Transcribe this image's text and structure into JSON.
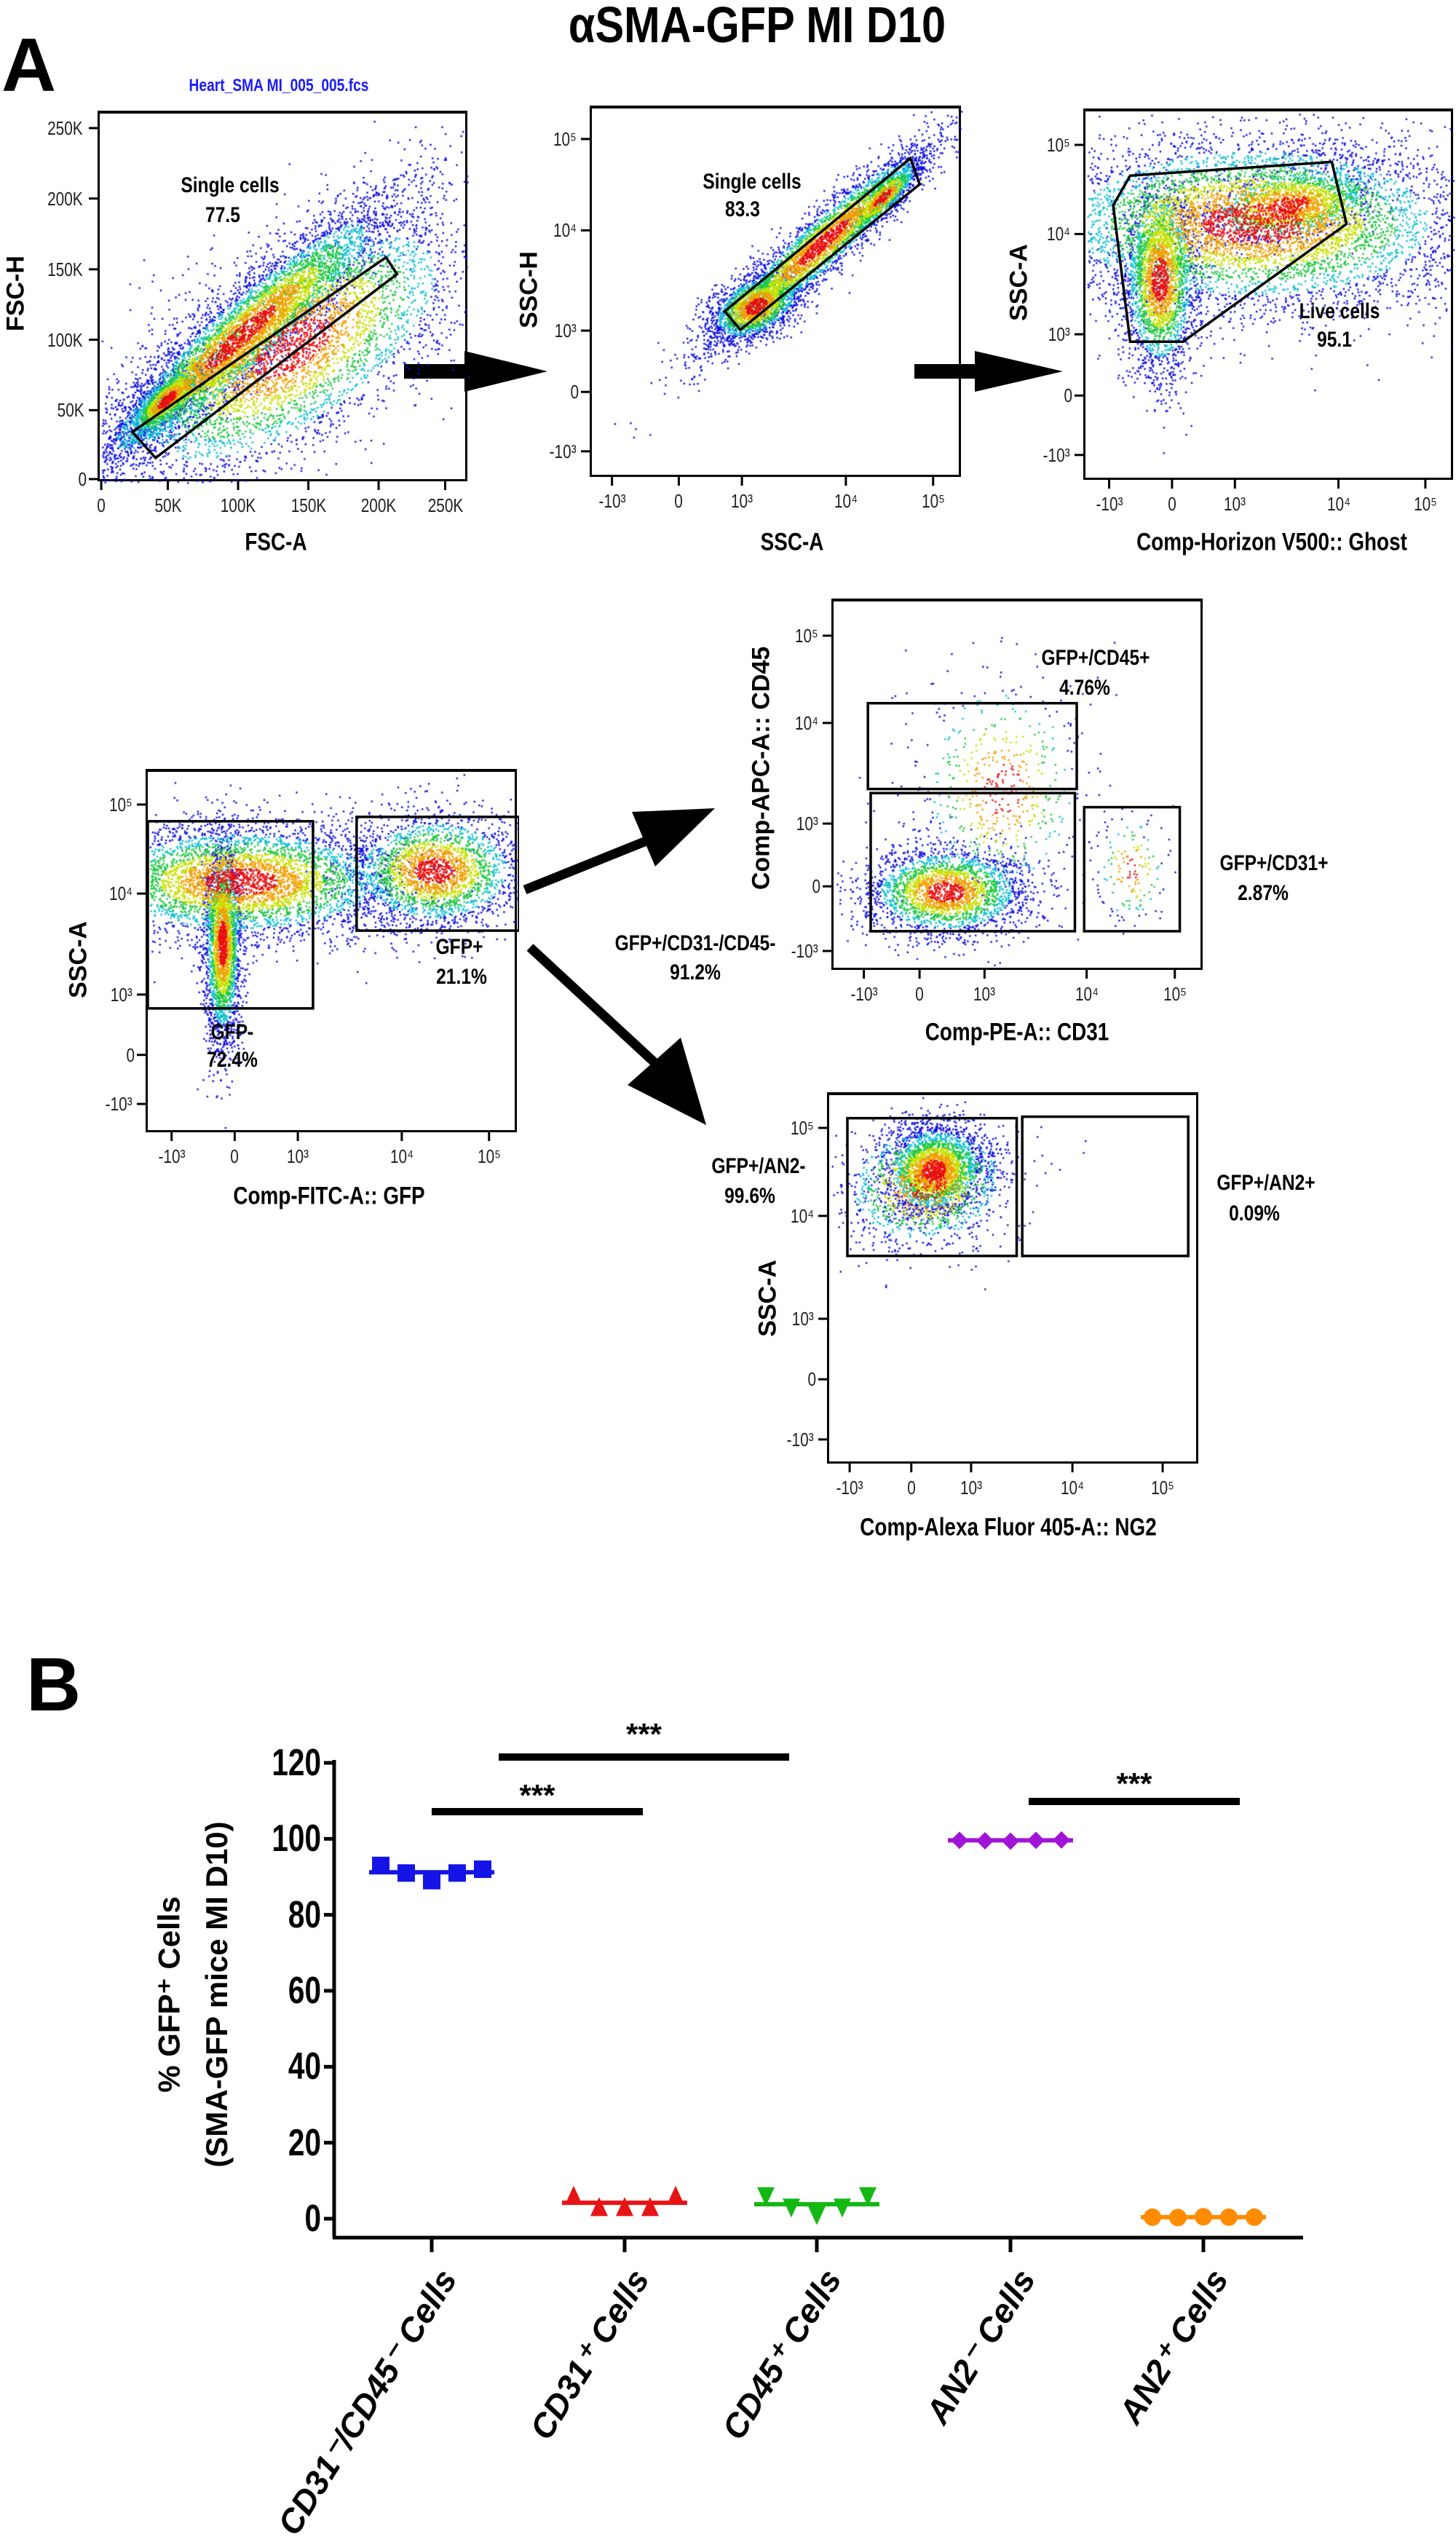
{
  "figure": {
    "title": "αSMA-GFP MI D10",
    "panel_a_label": "A",
    "panel_b_label": "B",
    "filename": "Heart_SMA MI_005_005.fcs"
  },
  "flow_plots": [
    {
      "xlabel": "FSC-A",
      "ylabel": "FSC-H",
      "xticks": [
        "0",
        "50K",
        "100K",
        "150K",
        "200K",
        "250K"
      ],
      "yticks": [
        "250K",
        "200K",
        "150K",
        "100K",
        "50K",
        "0"
      ],
      "gates": [
        {
          "name": "Single cells",
          "value": "77.5"
        }
      ]
    },
    {
      "xlabel": "SSC-A",
      "ylabel": "SSC-H",
      "xticks": [
        "-10³",
        "0",
        "10³",
        "10⁴",
        "10⁵"
      ],
      "yticks": [
        "10⁵",
        "10⁴",
        "10³",
        "0",
        "-10³"
      ],
      "gates": [
        {
          "name": "Single cells",
          "value": "83.3"
        }
      ]
    },
    {
      "xlabel": "Comp-Horizon V500:: Ghost",
      "ylabel": "SSC-A",
      "xticks": [
        "-10³",
        "0",
        "10³",
        "10⁴",
        "10⁵"
      ],
      "yticks": [
        "10⁵",
        "10⁴",
        "10³",
        "0",
        "-10³"
      ],
      "gates": [
        {
          "name": "Live cells",
          "value": "95.1"
        }
      ]
    },
    {
      "xlabel": "Comp-FITC-A:: GFP",
      "ylabel": "SSC-A",
      "xticks": [
        "-10³",
        "0",
        "10³",
        "10⁴",
        "10⁵"
      ],
      "yticks": [
        "10⁵",
        "10⁴",
        "10³",
        "0",
        "-10³"
      ],
      "gates": [
        {
          "name": "GFP-",
          "value": "72.4%"
        },
        {
          "name": "GFP+",
          "value": "21.1%"
        }
      ]
    },
    {
      "xlabel": "Comp-PE-A:: CD31",
      "ylabel": "Comp-APC-A:: CD45",
      "xticks": [
        "-10³",
        "0",
        "10³",
        "10⁴",
        "10⁵"
      ],
      "yticks": [
        "10⁵",
        "10⁴",
        "10³",
        "0",
        "-10³"
      ],
      "gates": [
        {
          "name": "GFP+/CD45+",
          "value": "4.76%"
        },
        {
          "name": "GFP+/CD31-/CD45-",
          "value": "91.2%"
        },
        {
          "name": "GFP+/CD31+",
          "value": "2.87%"
        }
      ]
    },
    {
      "xlabel": "Comp-Alexa Fluor 405-A:: NG2",
      "ylabel": "SSC-A",
      "xticks": [
        "-10³",
        "0",
        "10³",
        "10⁴",
        "10⁵"
      ],
      "yticks": [
        "10⁵",
        "10⁴",
        "10³",
        "0",
        "-10³"
      ],
      "gates": [
        {
          "name": "GFP+/AN2-",
          "value": "99.6%"
        },
        {
          "name": "GFP+/AN2+",
          "value": "0.09%"
        }
      ]
    }
  ],
  "chart_data": {
    "type": "scatter",
    "title": "",
    "xlabel": "",
    "ylabel_lines": [
      "% GFP⁺ Cells",
      "(SMA-GFP mice MI D10)"
    ],
    "ylim": [
      0,
      120
    ],
    "yticks": [
      0,
      20,
      40,
      60,
      80,
      100,
      120
    ],
    "categories": [
      "CD31⁻/CD45⁻ Cells",
      "CD31⁺ Cells",
      "CD45⁺ Cells",
      "AN2⁻ Cells",
      "AN2⁺ Cells"
    ],
    "series": [
      {
        "name": "CD31⁻/CD45⁻ Cells",
        "marker": "square",
        "color": "#1414e6",
        "values": [
          93,
          91,
          89,
          91,
          92
        ],
        "mean": 91.2
      },
      {
        "name": "CD31⁺ Cells",
        "marker": "triangle-up",
        "color": "#e61414",
        "values": [
          6,
          3,
          3,
          3,
          6
        ],
        "mean": 4.2
      },
      {
        "name": "CD45⁺ Cells",
        "marker": "triangle-down",
        "color": "#14b814",
        "values": [
          6,
          3,
          1,
          3,
          6
        ],
        "mean": 3.8
      },
      {
        "name": "AN2⁻ Cells",
        "marker": "diamond",
        "color": "#a014d8",
        "values": [
          99.6,
          99.5,
          99.4,
          99.6,
          99.7
        ],
        "mean": 99.6
      },
      {
        "name": "AN2⁺ Cells",
        "marker": "circle",
        "color": "#ff8c00",
        "values": [
          0.4,
          0.3,
          0.5,
          0.4,
          0.4
        ],
        "mean": 0.4
      }
    ],
    "significance": [
      {
        "from": 0,
        "to": 1,
        "label": "***"
      },
      {
        "from": 0,
        "to": 2,
        "label": "***"
      },
      {
        "from": 3,
        "to": 4,
        "label": "***"
      }
    ]
  }
}
